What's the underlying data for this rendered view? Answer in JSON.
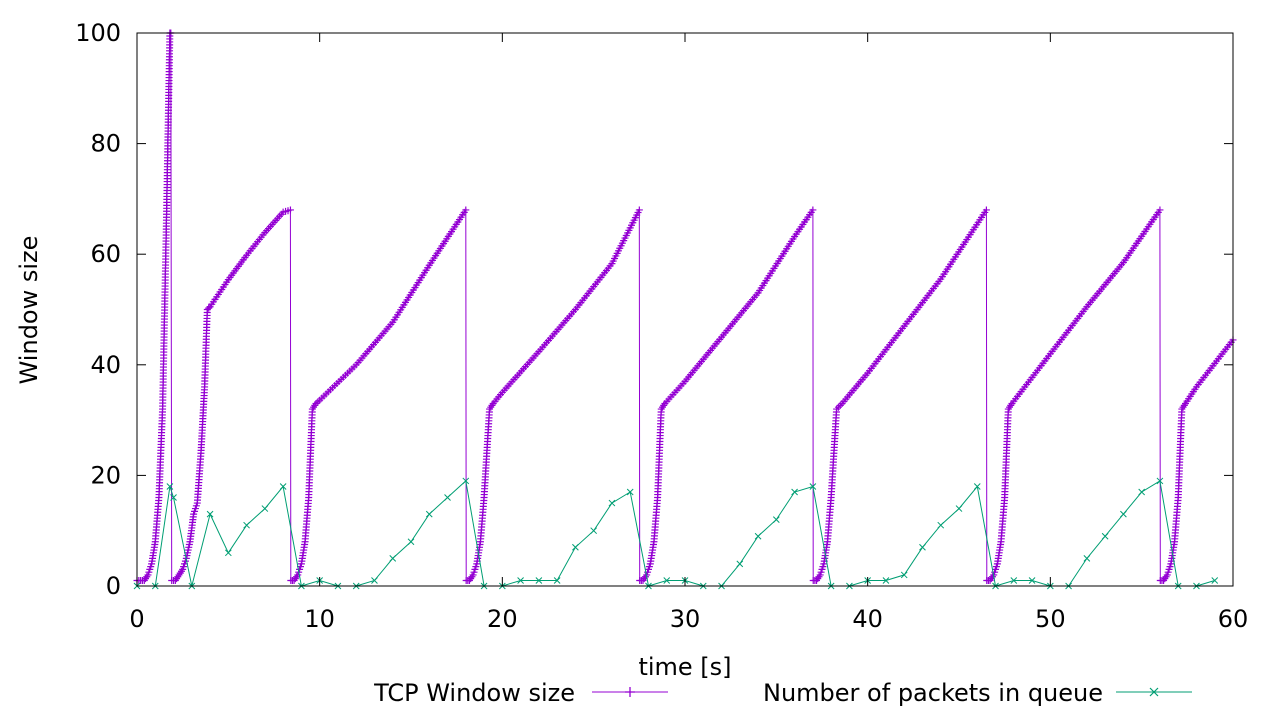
{
  "chart_data": {
    "type": "line",
    "title": "",
    "xlabel": "time [s]",
    "ylabel": "Window size",
    "xlim": [
      0,
      60
    ],
    "ylim": [
      0,
      100
    ],
    "x_ticks": [
      "0",
      "10",
      "20",
      "30",
      "40",
      "50",
      "60"
    ],
    "y_ticks": [
      "0",
      "20",
      "40",
      "60",
      "80",
      "100"
    ],
    "grid": false,
    "legend_position": "bottom",
    "series": [
      {
        "name": "TCP Window size",
        "color": "#9400d3",
        "marker": "plus",
        "marker_density": "dense",
        "points": [
          [
            0.0,
            1
          ],
          [
            0.2,
            1
          ],
          [
            0.4,
            1
          ],
          [
            0.6,
            2
          ],
          [
            0.8,
            4
          ],
          [
            1.0,
            8
          ],
          [
            1.2,
            16
          ],
          [
            1.4,
            32
          ],
          [
            1.6,
            64
          ],
          [
            1.8,
            100
          ],
          [
            1.85,
            100
          ],
          [
            1.9,
            1
          ],
          [
            2.1,
            1
          ],
          [
            2.3,
            2
          ],
          [
            2.5,
            3
          ],
          [
            2.7,
            5
          ],
          [
            2.9,
            8
          ],
          [
            3.1,
            13
          ],
          [
            3.3,
            15
          ],
          [
            3.5,
            24
          ],
          [
            3.7,
            36
          ],
          [
            3.85,
            50
          ],
          [
            4,
            50.5
          ],
          [
            5,
            55.4
          ],
          [
            6,
            59.8
          ],
          [
            7,
            63.9
          ],
          [
            8,
            67.6
          ],
          [
            8.4,
            68
          ],
          [
            8.42,
            1
          ],
          [
            8.6,
            1
          ],
          [
            8.8,
            2
          ],
          [
            9.0,
            4
          ],
          [
            9.2,
            8
          ],
          [
            9.4,
            16
          ],
          [
            9.6,
            32
          ],
          [
            9.8,
            33
          ],
          [
            10,
            33.6
          ],
          [
            12,
            40.0
          ],
          [
            14,
            47.7
          ],
          [
            16,
            58.0
          ],
          [
            18,
            68
          ],
          [
            18.02,
            1
          ],
          [
            18.2,
            1
          ],
          [
            18.4,
            2
          ],
          [
            18.6,
            4
          ],
          [
            18.8,
            8
          ],
          [
            19.0,
            16
          ],
          [
            19.3,
            32
          ],
          [
            19.5,
            33
          ],
          [
            20,
            35.0
          ],
          [
            22,
            42.4
          ],
          [
            24,
            50.0
          ],
          [
            26,
            58.3
          ],
          [
            27.5,
            68
          ],
          [
            27.52,
            1
          ],
          [
            27.7,
            1
          ],
          [
            27.9,
            2
          ],
          [
            28.1,
            4
          ],
          [
            28.3,
            8
          ],
          [
            28.5,
            16
          ],
          [
            28.7,
            32
          ],
          [
            28.9,
            33
          ],
          [
            30,
            37.0
          ],
          [
            32,
            45.0
          ],
          [
            34,
            53.0
          ],
          [
            36,
            63.2
          ],
          [
            37,
            68
          ],
          [
            37.02,
            1
          ],
          [
            37.2,
            1
          ],
          [
            37.4,
            2
          ],
          [
            37.6,
            4
          ],
          [
            37.8,
            8
          ],
          [
            38.0,
            16
          ],
          [
            38.3,
            32
          ],
          [
            38.6,
            33
          ],
          [
            40,
            38.5
          ],
          [
            42,
            47.0
          ],
          [
            44,
            55.5
          ],
          [
            46.5,
            68
          ],
          [
            46.52,
            1
          ],
          [
            46.7,
            1
          ],
          [
            46.9,
            2
          ],
          [
            47.1,
            4
          ],
          [
            47.3,
            8
          ],
          [
            47.5,
            16
          ],
          [
            47.7,
            32
          ],
          [
            47.9,
            33
          ],
          [
            50,
            42.0
          ],
          [
            52,
            50.5
          ],
          [
            54,
            58.5
          ],
          [
            56,
            68
          ],
          [
            56.02,
            1
          ],
          [
            56.2,
            1
          ],
          [
            56.4,
            2
          ],
          [
            56.6,
            4
          ],
          [
            56.8,
            8
          ],
          [
            57.0,
            16
          ],
          [
            57.2,
            32
          ],
          [
            57.4,
            33
          ],
          [
            58,
            36.0
          ],
          [
            60,
            44.5
          ]
        ]
      },
      {
        "name": "Number of packets in queue",
        "color": "#009e73",
        "marker": "x",
        "marker_density": "sparse",
        "points": [
          [
            0,
            0
          ],
          [
            1,
            0
          ],
          [
            1.8,
            18
          ],
          [
            2,
            16
          ],
          [
            3,
            0
          ],
          [
            4,
            13
          ],
          [
            5,
            6
          ],
          [
            6,
            11
          ],
          [
            7,
            14
          ],
          [
            8,
            18
          ],
          [
            9,
            0
          ],
          [
            10,
            1
          ],
          [
            11,
            0
          ],
          [
            12,
            0
          ],
          [
            13,
            1
          ],
          [
            14,
            5
          ],
          [
            15,
            8
          ],
          [
            16,
            13
          ],
          [
            17,
            16
          ],
          [
            18,
            19
          ],
          [
            19,
            0
          ],
          [
            20,
            0
          ],
          [
            21,
            1
          ],
          [
            22,
            1
          ],
          [
            23,
            1
          ],
          [
            24,
            7
          ],
          [
            25,
            10
          ],
          [
            26,
            15
          ],
          [
            27,
            17
          ],
          [
            28,
            0
          ],
          [
            29,
            1
          ],
          [
            30,
            1
          ],
          [
            31,
            0
          ],
          [
            32,
            0
          ],
          [
            33,
            4
          ],
          [
            34,
            9
          ],
          [
            35,
            12
          ],
          [
            36,
            17
          ],
          [
            37,
            18
          ],
          [
            38,
            0
          ],
          [
            39,
            0
          ],
          [
            40,
            1
          ],
          [
            41,
            1
          ],
          [
            42,
            2
          ],
          [
            43,
            7
          ],
          [
            44,
            11
          ],
          [
            45,
            14
          ],
          [
            46,
            18
          ],
          [
            47,
            0
          ],
          [
            48,
            1
          ],
          [
            49,
            1
          ],
          [
            50,
            0
          ],
          [
            51,
            0
          ],
          [
            52,
            5
          ],
          [
            53,
            9
          ],
          [
            54,
            13
          ],
          [
            55,
            17
          ],
          [
            56,
            19
          ],
          [
            57,
            0
          ],
          [
            58,
            0
          ],
          [
            59,
            1
          ]
        ]
      }
    ]
  }
}
